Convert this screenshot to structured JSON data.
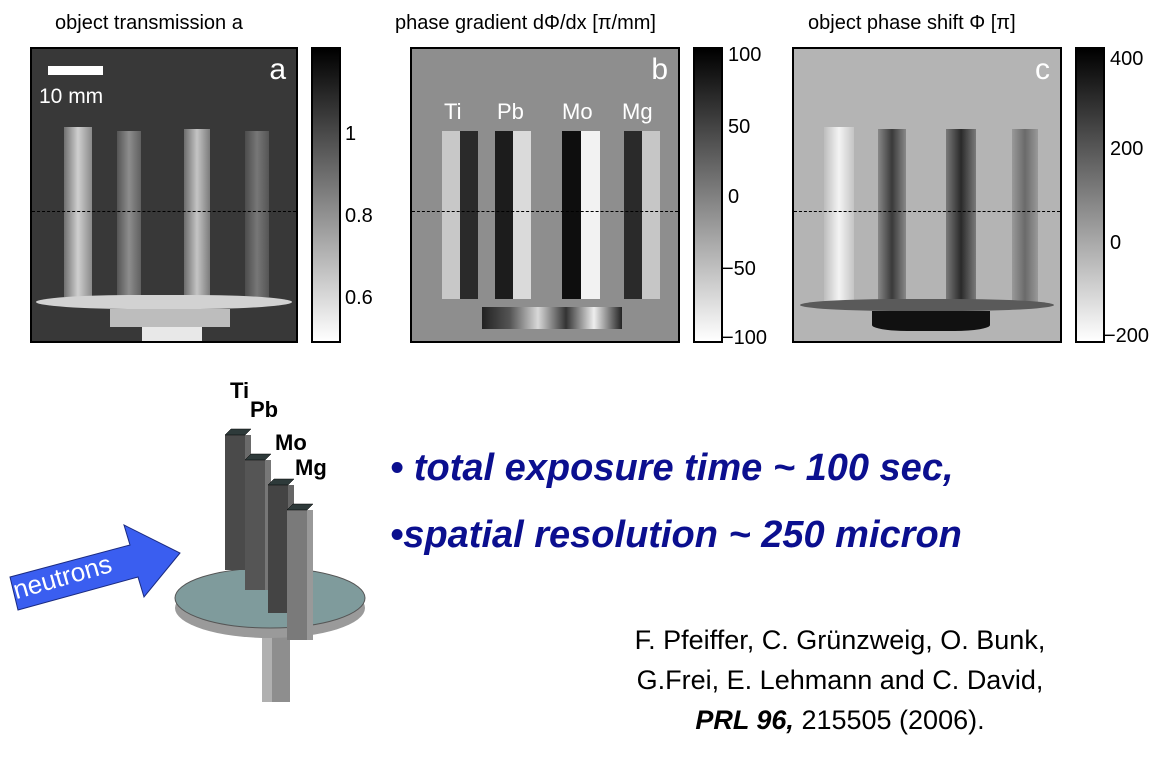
{
  "panels": {
    "a": {
      "title": "object transmission a",
      "letter": "a",
      "scale_bar_label": "10 mm",
      "colorbar_ticks": [
        "1",
        "0.8",
        "0.6"
      ]
    },
    "b": {
      "title": "phase gradient dΦ/dx [π/mm]",
      "letter": "b",
      "material_labels": [
        "Ti",
        "Pb",
        "Mo",
        "Mg"
      ],
      "colorbar_ticks": [
        "100",
        "50",
        "0",
        "−50",
        "−100"
      ]
    },
    "c": {
      "title": "object phase shift Φ [π]",
      "letter": "c",
      "colorbar_ticks": [
        "400",
        "200",
        "0",
        "−200"
      ]
    }
  },
  "setup": {
    "rod_labels": [
      "Ti",
      "Pb",
      "Mo",
      "Mg"
    ],
    "arrow_label": "neutrons",
    "colors": {
      "arrow": "#3a5ef0",
      "disk": "#7f9b9c"
    }
  },
  "bullets": [
    "•  total exposure time ~ 100 sec,",
    "•spatial resolution ~ 250 micron"
  ],
  "reference": {
    "line1": "F. Pfeiffer, C. Grünzweig, O. Bunk,",
    "line2": "G.Frei, E. Lehmann and C. David,",
    "journal": "PRL 96,",
    "rest": " 215505 (2006)."
  },
  "colors": {
    "bullet_text": "#0b0f8f"
  }
}
